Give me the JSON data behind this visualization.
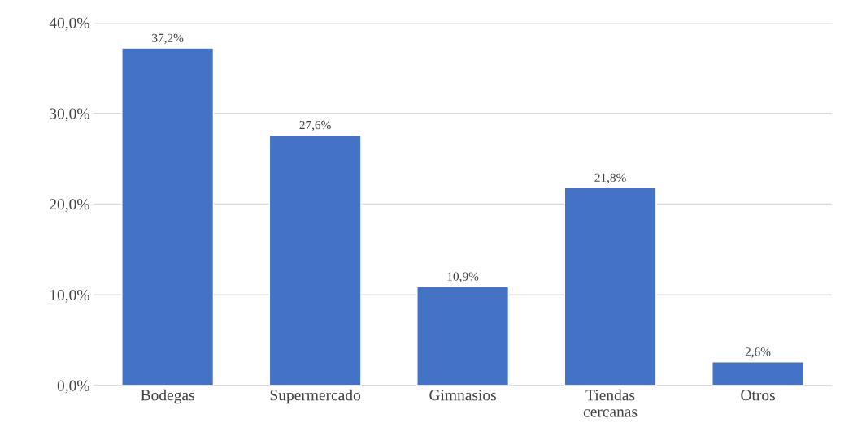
{
  "chart_data": {
    "type": "bar",
    "categories": [
      "Bodegas",
      "Supermercado",
      "Gimnasios",
      "Tiendas\ncercanas",
      "Otros"
    ],
    "values": [
      37.2,
      27.6,
      10.9,
      21.8,
      2.6
    ],
    "value_labels": [
      "37,2%",
      "27,6%",
      "10,9%",
      "21,8%",
      "2,6%"
    ],
    "color": "#4472c4",
    "ylim": [
      0,
      40
    ],
    "yticks": [
      {
        "value": 0,
        "label": "0,0%"
      },
      {
        "value": 10,
        "label": "10,0%"
      },
      {
        "value": 20,
        "label": "20,0%"
      },
      {
        "value": 30,
        "label": "30,0%"
      },
      {
        "value": 40,
        "label": "40,0%"
      }
    ],
    "grid": "y"
  }
}
